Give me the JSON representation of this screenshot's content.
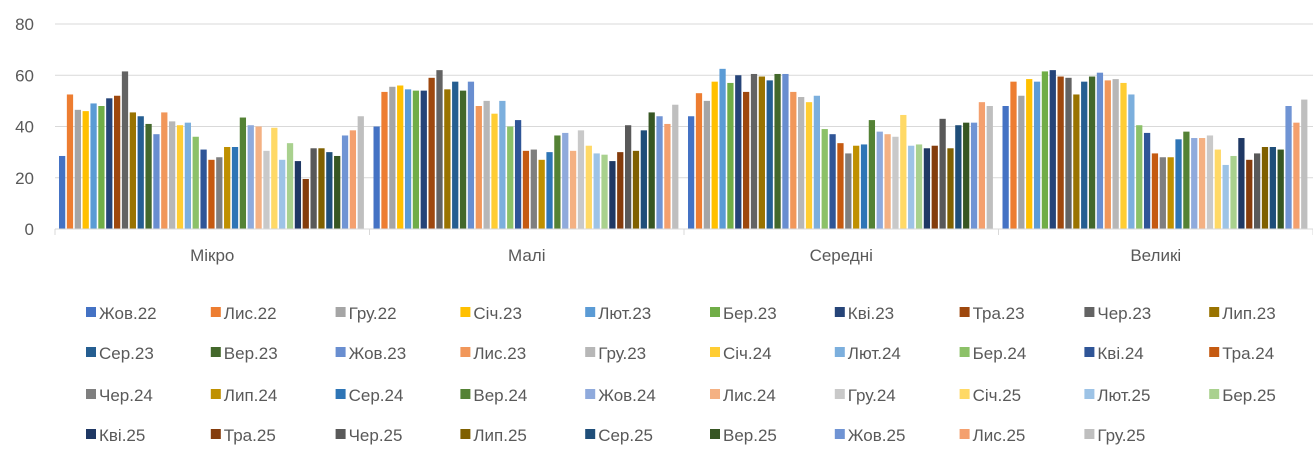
{
  "chart_data": {
    "type": "bar",
    "categories": [
      "Мікро",
      "Малі",
      "Середні",
      "Великі"
    ],
    "ylim": [
      0,
      80
    ],
    "yticks": [
      "0",
      "20",
      "40",
      "60",
      "80"
    ],
    "grid": true,
    "legend_position": "bottom",
    "series": [
      {
        "name": "Жов.22",
        "color": "#4472C4",
        "values": [
          28.5,
          40,
          44,
          48
        ]
      },
      {
        "name": "Лис.22",
        "color": "#ED7D31",
        "values": [
          52.5,
          53.5,
          53,
          57.5
        ]
      },
      {
        "name": "Гру.22",
        "color": "#A5A5A5",
        "values": [
          46.5,
          55.5,
          50,
          52
        ]
      },
      {
        "name": "Січ.23",
        "color": "#FFC000",
        "values": [
          46,
          56,
          57.5,
          58.5
        ]
      },
      {
        "name": "Лют.23",
        "color": "#5B9BD5",
        "values": [
          49,
          54.5,
          62.5,
          57.5
        ]
      },
      {
        "name": "Бер.23",
        "color": "#70AD47",
        "values": [
          48,
          54,
          57,
          61.5
        ]
      },
      {
        "name": "Кві.23",
        "color": "#264478",
        "values": [
          51,
          54,
          60,
          62
        ]
      },
      {
        "name": "Тра.23",
        "color": "#9E480E",
        "values": [
          52,
          59,
          53.5,
          59.5
        ]
      },
      {
        "name": "Чер.23",
        "color": "#636363",
        "values": [
          61.5,
          62,
          60.5,
          59
        ]
      },
      {
        "name": "Лип.23",
        "color": "#997300",
        "values": [
          45.5,
          54.5,
          59.5,
          52.5
        ]
      },
      {
        "name": "Сер.23",
        "color": "#255E91",
        "values": [
          44,
          57.5,
          58,
          57.5
        ]
      },
      {
        "name": "Вер.23",
        "color": "#43682B",
        "values": [
          41,
          54,
          60.5,
          59.5
        ]
      },
      {
        "name": "Жов.23",
        "color": "#698ED0",
        "values": [
          37,
          57.5,
          60.5,
          61
        ]
      },
      {
        "name": "Лис.23",
        "color": "#F1975A",
        "values": [
          45.5,
          48,
          53.5,
          58
        ]
      },
      {
        "name": "Гру.23",
        "color": "#B7B7B7",
        "values": [
          42,
          50,
          51.5,
          58.5
        ]
      },
      {
        "name": "Січ.24",
        "color": "#FFCD33",
        "values": [
          40.5,
          45,
          49.5,
          57
        ]
      },
      {
        "name": "Лют.24",
        "color": "#7CAFDD",
        "values": [
          41.5,
          50,
          52,
          52.5
        ]
      },
      {
        "name": "Бер.24",
        "color": "#8CC168",
        "values": [
          36,
          40,
          39,
          40.5
        ]
      },
      {
        "name": "Кві.24",
        "color": "#2F5597",
        "values": [
          31,
          42.5,
          37,
          37.5
        ]
      },
      {
        "name": "Тра.24",
        "color": "#C55A11",
        "values": [
          27,
          30.5,
          33.5,
          29.5
        ]
      },
      {
        "name": "Чер.24",
        "color": "#7F7F7F",
        "values": [
          28,
          31,
          29.5,
          28
        ]
      },
      {
        "name": "Лип.24",
        "color": "#BF9000",
        "values": [
          32,
          27,
          32.5,
          28
        ]
      },
      {
        "name": "Сер.24",
        "color": "#2E75B6",
        "values": [
          32,
          30,
          33,
          35
        ]
      },
      {
        "name": "Вер.24",
        "color": "#548235",
        "values": [
          43.5,
          36.5,
          42.5,
          38
        ]
      },
      {
        "name": "Жов.24",
        "color": "#8FAADC",
        "values": [
          40.5,
          37.5,
          38,
          35.5
        ]
      },
      {
        "name": "Лис.24",
        "color": "#F4B183",
        "values": [
          40,
          30.5,
          37,
          35.5
        ]
      },
      {
        "name": "Гру.24",
        "color": "#C9C9C9",
        "values": [
          30.5,
          38.5,
          36,
          36.5
        ]
      },
      {
        "name": "Січ.25",
        "color": "#FFD966",
        "values": [
          39.5,
          32.5,
          44.5,
          31
        ]
      },
      {
        "name": "Лют.25",
        "color": "#9DC3E6",
        "values": [
          27,
          29.5,
          32.5,
          25
        ]
      },
      {
        "name": "Бер.25",
        "color": "#A9D18E",
        "values": [
          33.5,
          29,
          33,
          28.5
        ]
      },
      {
        "name": "Кві.25",
        "color": "#1F3864",
        "values": [
          26.5,
          26.5,
          31.5,
          35.5
        ]
      },
      {
        "name": "Тра.25",
        "color": "#843C0C",
        "values": [
          19.5,
          30,
          32.5,
          27
        ]
      },
      {
        "name": "Чер.25",
        "color": "#595959",
        "values": [
          31.5,
          40.5,
          43,
          29.5
        ]
      },
      {
        "name": "Лип.25",
        "color": "#7F6000",
        "values": [
          31.5,
          30.5,
          31.5,
          32
        ]
      },
      {
        "name": "Сер.25",
        "color": "#1F4E79",
        "values": [
          30,
          38.5,
          40.5,
          32
        ]
      },
      {
        "name": "Вер.25",
        "color": "#375623",
        "values": [
          28.5,
          45.5,
          41.5,
          31
        ]
      },
      {
        "name": "Жов.25",
        "color": "#7094D4",
        "values": [
          36.5,
          44,
          41.5,
          48
        ]
      },
      {
        "name": "Лис.25",
        "color": "#F4A06E",
        "values": [
          38.5,
          41,
          49.5,
          41.5
        ]
      },
      {
        "name": "Гру.25",
        "color": "#BFBFBF",
        "values": [
          44,
          48.5,
          48,
          50.5
        ]
      }
    ]
  }
}
